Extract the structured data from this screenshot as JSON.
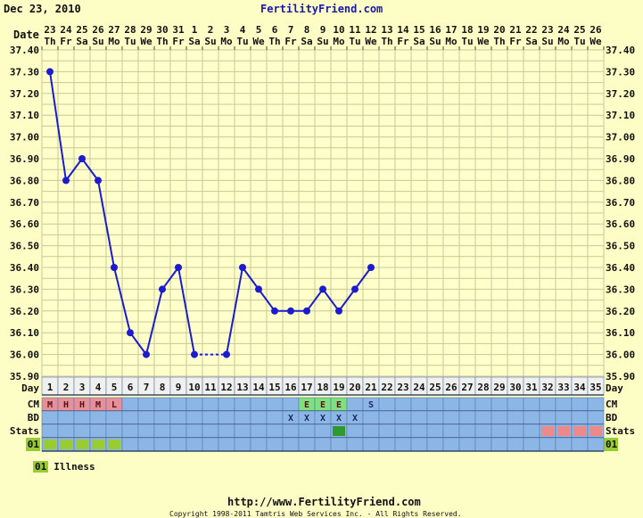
{
  "header": {
    "date": "Dec 23, 2010",
    "site": "FertilityFriend.com",
    "date_label": "Date"
  },
  "colors": {
    "background": "#fdfdc6",
    "plot_background": "#ffffcc",
    "grid": "#c8c896",
    "line": "#1c1ccc",
    "row_blue": "#8cb6e6",
    "cm_pink": "#e8909a",
    "cm_green": "#7ee07e",
    "stats_green": "#2e9a2e",
    "stats_pink": "#ec8a8a",
    "illness_green": "#99cc33"
  },
  "chart_data": {
    "type": "line",
    "title": "",
    "xlabel": "Day",
    "ylabel": "",
    "ylim": [
      35.9,
      37.4
    ],
    "y_ticks": [
      "37.40",
      "37.30",
      "37.20",
      "37.10",
      "37.00",
      "36.90",
      "36.80",
      "36.70",
      "36.60",
      "36.50",
      "36.40",
      "36.30",
      "36.20",
      "36.10",
      "36.00",
      "35.90"
    ],
    "grid": true,
    "days": [
      1,
      2,
      3,
      4,
      5,
      6,
      7,
      8,
      9,
      10,
      11,
      12,
      13,
      14,
      15,
      16,
      17,
      18,
      19,
      20,
      21,
      22,
      23,
      24,
      25,
      26,
      27,
      28,
      29,
      30,
      31,
      32,
      33,
      34,
      35
    ],
    "dates": [
      "23",
      "24",
      "25",
      "26",
      "27",
      "28",
      "29",
      "30",
      "31",
      "1",
      "2",
      "3",
      "4",
      "5",
      "6",
      "7",
      "8",
      "9",
      "10",
      "11",
      "12",
      "13",
      "14",
      "15",
      "16",
      "17",
      "18",
      "19",
      "20",
      "21",
      "22",
      "23",
      "24",
      "25",
      "26"
    ],
    "weekdays": [
      "Th",
      "Fr",
      "Sa",
      "Su",
      "Mo",
      "Tu",
      "We",
      "Th",
      "Fr",
      "Sa",
      "Su",
      "Mo",
      "Tu",
      "We",
      "Th",
      "Fr",
      "Sa",
      "Su",
      "Mo",
      "Tu",
      "We",
      "Th",
      "Fr",
      "Sa",
      "Su",
      "Mo",
      "Tu",
      "We",
      "Th",
      "Fr",
      "Sa",
      "Su",
      "Mo",
      "Tu",
      "We"
    ],
    "series": [
      {
        "values": [
          37.3,
          36.8,
          36.9,
          36.8,
          36.4,
          36.1,
          36.0,
          36.3,
          36.4,
          36.0,
          null,
          36.0,
          36.4,
          36.3,
          36.2,
          36.2,
          36.2,
          36.3,
          36.2,
          36.3,
          36.4,
          null,
          null,
          null,
          null,
          null,
          null,
          null,
          null,
          null,
          null,
          null,
          null,
          null,
          null
        ]
      }
    ],
    "rows": {
      "labels": {
        "day": "Day",
        "cm": "CM",
        "bd": "BD",
        "stats": "Stats",
        "illness": "01"
      },
      "cm": {
        "1": "M",
        "2": "H",
        "3": "H",
        "4": "M",
        "5": "L",
        "17": "E",
        "18": "E",
        "19": "E",
        "21": "S"
      },
      "bd": {
        "16": "X",
        "17": "X",
        "18": "X",
        "19": "X",
        "20": "X"
      },
      "stats": {
        "19": "green",
        "32": "pink",
        "33": "pink",
        "34": "pink",
        "35": "pink"
      },
      "illness_days": [
        1,
        2,
        3,
        4,
        5
      ]
    }
  },
  "legend": {
    "code": "01",
    "label": "Illness"
  },
  "footer": {
    "url": "http://www.FertilityFriend.com",
    "copyright": "Copyright 1998-2011 Tamtris Web Services Inc. - All Rights Reserved."
  }
}
